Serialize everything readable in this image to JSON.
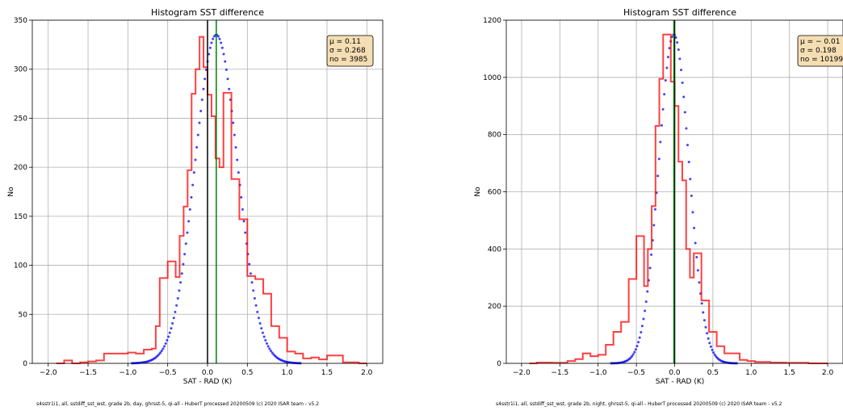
{
  "chart_data": [
    {
      "type": "histogram",
      "title": "Histogram SST difference",
      "xlabel": "SAT - RAD (K)",
      "ylabel": "No",
      "xlim": [
        -2.2,
        2.2
      ],
      "ylim": [
        0,
        350
      ],
      "xticks": [
        -2.0,
        -1.5,
        -1.0,
        -0.5,
        0.0,
        0.5,
        1.0,
        1.5,
        2.0
      ],
      "xtick_labels": [
        "−2.0",
        "−1.5",
        "−1.0",
        "−0.5",
        "0.0",
        "0.5",
        "1.0",
        "1.5",
        "2.0"
      ],
      "yticks": [
        0,
        50,
        100,
        150,
        200,
        250,
        300,
        350
      ],
      "grid": true,
      "bin_width": 0.05,
      "histogram": {
        "x_start": [
          -1.9,
          -1.85,
          -1.8,
          -1.75,
          -1.7,
          -1.65,
          -1.6,
          -1.55,
          -1.5,
          -1.45,
          -1.4,
          -1.35,
          -1.3,
          -1.25,
          -1.2,
          -1.15,
          -1.1,
          -1.05,
          -1.0,
          -0.95,
          -0.9,
          -0.85,
          -0.8,
          -0.75,
          -0.7,
          -0.65,
          -0.6,
          -0.55,
          -0.5,
          -0.45,
          -0.4,
          -0.35,
          -0.3,
          -0.25,
          -0.2,
          -0.15,
          -0.1,
          -0.05,
          0.0,
          0.05,
          0.1,
          0.15,
          0.2,
          0.25,
          0.3,
          0.35,
          0.4,
          0.45,
          0.5,
          0.55,
          0.6,
          0.65,
          0.7,
          0.75,
          0.8,
          0.85,
          0.9,
          0.95,
          1.0,
          1.05,
          1.1,
          1.15,
          1.2,
          1.25,
          1.3,
          1.35,
          1.4,
          1.45,
          1.5,
          1.55,
          1.6,
          1.65,
          1.7,
          1.75,
          1.8,
          1.85,
          1.9,
          1.95
        ],
        "counts": [
          0,
          0,
          3,
          3,
          0,
          0,
          1,
          1,
          2,
          2,
          3,
          3,
          10,
          10,
          10,
          10,
          10,
          10,
          11,
          11,
          10,
          10,
          14,
          14,
          15,
          38,
          87,
          87,
          104,
          104,
          88,
          130,
          160,
          197,
          275,
          300,
          333,
          302,
          274,
          252,
          209,
          200,
          276,
          276,
          188,
          188,
          147,
          147,
          89,
          89,
          86,
          86,
          71,
          71,
          38,
          38,
          26,
          26,
          12,
          12,
          10,
          10,
          5,
          5,
          6,
          6,
          4,
          4,
          8,
          8,
          8,
          8,
          1,
          1,
          1,
          1,
          0,
          0
        ]
      },
      "gaussian": {
        "mu": 0.11,
        "sigma": 0.268,
        "peak": 335
      },
      "vlines": [
        {
          "x": 0.0,
          "color": "#000000"
        },
        {
          "x": 0.11,
          "color": "#008000"
        }
      ],
      "stats_lines": [
        "μ   = 0.11",
        "σ   = 0.268",
        "no = 3985"
      ],
      "colors": {
        "histogram": "#ff0000",
        "gaussian": "#0000ff",
        "stats_box": "#f5deb3"
      }
    },
    {
      "type": "histogram",
      "title": "Histogram SST difference",
      "xlabel": "SAT - RAD (K)",
      "ylabel": "No",
      "xlim": [
        -2.2,
        2.2
      ],
      "ylim": [
        0,
        1200
      ],
      "xticks": [
        -2.0,
        -1.5,
        -1.0,
        -0.5,
        0.0,
        0.5,
        1.0,
        1.5,
        2.0
      ],
      "xtick_labels": [
        "−2.0",
        "−1.5",
        "−1.0",
        "−0.5",
        "0.0",
        "0.5",
        "1.0",
        "1.5",
        "2.0"
      ],
      "yticks": [
        0,
        200,
        400,
        600,
        800,
        1000,
        1200
      ],
      "grid": true,
      "bin_width": 0.05,
      "histogram": {
        "x_start": [
          -1.9,
          -1.85,
          -1.8,
          -1.75,
          -1.7,
          -1.65,
          -1.6,
          -1.55,
          -1.5,
          -1.45,
          -1.4,
          -1.35,
          -1.3,
          -1.25,
          -1.2,
          -1.15,
          -1.1,
          -1.05,
          -1.0,
          -0.95,
          -0.9,
          -0.85,
          -0.8,
          -0.75,
          -0.7,
          -0.65,
          -0.6,
          -0.55,
          -0.5,
          -0.45,
          -0.4,
          -0.35,
          -0.3,
          -0.25,
          -0.2,
          -0.15,
          -0.1,
          -0.05,
          0.0,
          0.05,
          0.1,
          0.15,
          0.2,
          0.25,
          0.3,
          0.35,
          0.4,
          0.45,
          0.5,
          0.55,
          0.6,
          0.65,
          0.7,
          0.75,
          0.8,
          0.85,
          0.9,
          0.95,
          1.0,
          1.05,
          1.1,
          1.15,
          1.2,
          1.25,
          1.3,
          1.35,
          1.4,
          1.45,
          1.5,
          1.55,
          1.6,
          1.65,
          1.7,
          1.75,
          1.8,
          1.85,
          1.9,
          1.95
        ],
        "counts": [
          0,
          0,
          3,
          3,
          3,
          3,
          2,
          2,
          2,
          2,
          8,
          8,
          15,
          15,
          35,
          35,
          25,
          25,
          30,
          30,
          65,
          65,
          110,
          110,
          145,
          145,
          295,
          295,
          445,
          445,
          270,
          400,
          550,
          830,
          995,
          1150,
          1150,
          985,
          900,
          705,
          640,
          400,
          300,
          385,
          385,
          220,
          220,
          110,
          110,
          60,
          60,
          35,
          35,
          35,
          35,
          12,
          12,
          8,
          8,
          5,
          5,
          5,
          5,
          3,
          3,
          3,
          3,
          2,
          2,
          2,
          2,
          2,
          2,
          0,
          0,
          0,
          0,
          0
        ]
      },
      "gaussian": {
        "mu": -0.01,
        "sigma": 0.198,
        "peak": 1150
      },
      "vlines": [
        {
          "x": 0.0,
          "color": "#000000"
        },
        {
          "x": -0.01,
          "color": "#008000"
        }
      ],
      "stats_lines": [
        "μ   = − 0.01",
        "σ   = 0.198",
        "no = 10199"
      ],
      "colors": {
        "histogram": "#ff0000",
        "gaussian": "#0000ff",
        "stats_box": "#f5deb3"
      }
    }
  ],
  "footer": {
    "left": "s4sstr1i1, all, sstdiff_sst_wst, grade 2b, day, ghrsst-5, qi-all - HuberT    processed 20200509 (c) 2020 ISAR team - v5.2",
    "right": "s4sstr1i1, all, sstdiff_sst_wst, grade 2b, night, ghrsst-5, qi-all - HuberT  processed 20200509 (c) 2020 ISAR team - v5.2"
  }
}
